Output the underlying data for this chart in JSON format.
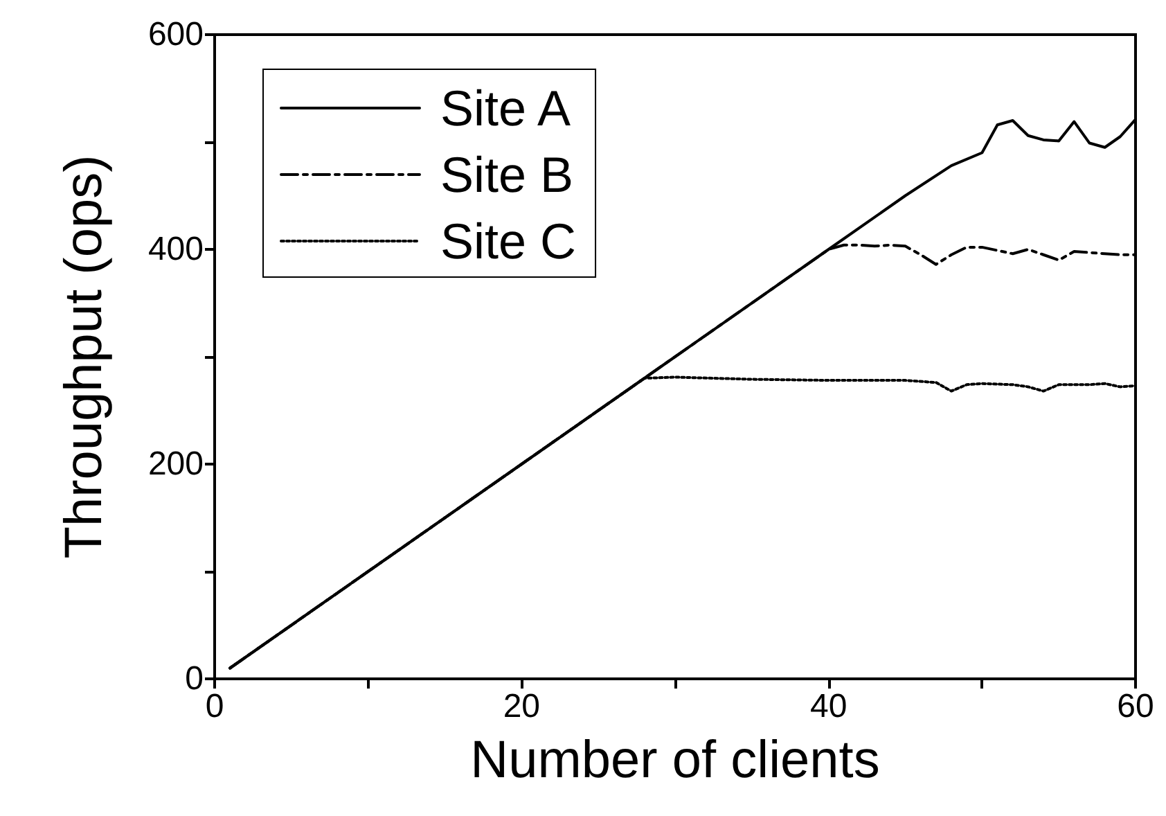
{
  "chart_data": {
    "type": "line",
    "xlabel": "Number of clients",
    "ylabel": "Throughput (ops)",
    "xlim": [
      0,
      60
    ],
    "xticks": [
      0,
      {
        "value": 10,
        "label": null
      },
      20,
      {
        "value": 30,
        "label": null
      },
      40,
      {
        "value": 50,
        "label": null
      },
      60
    ],
    "ylim": [
      0,
      600
    ],
    "yticks": [
      0,
      {
        "value": 100,
        "label": null
      },
      200,
      {
        "value": 300,
        "label": null
      },
      400,
      {
        "value": 500,
        "label": null
      },
      600
    ],
    "grid": false,
    "legend": "top left",
    "marker": "none",
    "series": [
      {
        "name": "Site A",
        "color": "#000000",
        "line_style": "solid",
        "x": [
          1,
          10,
          20,
          30,
          40,
          45,
          48,
          50,
          51,
          52,
          53,
          54,
          55,
          56,
          57,
          58,
          59,
          60
        ],
        "values": [
          10,
          100,
          200,
          300,
          400,
          450,
          478,
          490,
          516,
          520,
          506,
          502,
          501,
          519,
          499,
          495,
          505,
          521
        ]
      },
      {
        "name": "Site B",
        "color": "#000000",
        "line_style": "dashdot",
        "x": [
          1,
          20,
          40,
          41,
          42,
          43,
          44,
          45,
          46,
          47,
          48,
          49,
          50,
          51,
          52,
          53,
          54,
          55,
          56,
          57,
          58,
          59,
          60
        ],
        "values": [
          10,
          200,
          400,
          404,
          404,
          403,
          404,
          403,
          395,
          386,
          395,
          402,
          402,
          399,
          396,
          400,
          395,
          390,
          398,
          397,
          396,
          395,
          395
        ]
      },
      {
        "name": "Site C",
        "color": "#000000",
        "line_style": "dotted",
        "x": [
          1,
          15,
          28,
          30,
          35,
          40,
          45,
          47,
          48,
          49,
          50,
          52,
          53,
          54,
          55,
          57,
          58,
          59,
          60
        ],
        "values": [
          10,
          150,
          280,
          281,
          279,
          278,
          278,
          276,
          268,
          274,
          275,
          274,
          272,
          268,
          274,
          274,
          275,
          272,
          273
        ]
      }
    ]
  }
}
